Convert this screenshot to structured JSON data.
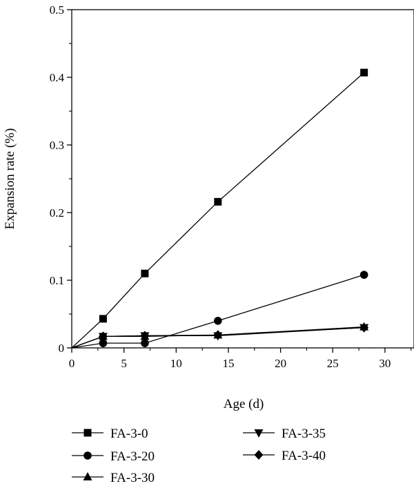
{
  "chart_data": {
    "type": "line",
    "xlabel": "Age (d)",
    "ylabel": "Expansion rate (%)",
    "xlim": [
      0,
      30
    ],
    "ylim": [
      0,
      0.5
    ],
    "xticks": [
      "0",
      "5",
      "10",
      "15",
      "20",
      "25",
      "30"
    ],
    "yticks": [
      "0",
      "0.1",
      "0.2",
      "0.3",
      "0.4",
      "0.5"
    ],
    "grid": false,
    "legend_position": "bottom",
    "series": [
      {
        "name": "FA-3-0",
        "marker": "square",
        "x": [
          0,
          3,
          7,
          14,
          28
        ],
        "y": [
          0,
          0.043,
          0.11,
          0.216,
          0.407
        ]
      },
      {
        "name": "FA-3-20",
        "marker": "circle",
        "x": [
          0,
          3,
          7,
          14,
          28
        ],
        "y": [
          0,
          0.007,
          0.007,
          0.04,
          0.108
        ]
      },
      {
        "name": "FA-3-30",
        "marker": "triangle-up",
        "x": [
          0,
          3,
          7,
          14,
          28
        ],
        "y": [
          0,
          0.017,
          0.017,
          0.019,
          0.031
        ]
      },
      {
        "name": "FA-3-35",
        "marker": "triangle-down",
        "x": [
          0,
          3,
          7,
          14,
          28
        ],
        "y": [
          0,
          0.017,
          0.018,
          0.018,
          0.03
        ]
      },
      {
        "name": "FA-3-40",
        "marker": "diamond",
        "x": [
          0,
          3,
          7,
          14,
          28
        ],
        "y": [
          0,
          0.017,
          0.018,
          0.019,
          0.03
        ]
      }
    ],
    "colors": {
      "line": "#000000",
      "marker": "#000000",
      "axis": "#000000"
    }
  }
}
